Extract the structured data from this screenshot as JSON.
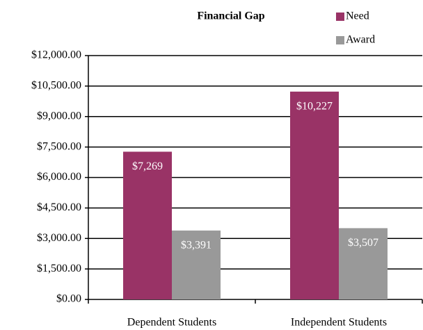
{
  "chart_data": {
    "type": "bar",
    "title": "Financial Gap",
    "categories": [
      "Dependent Students",
      "Independent Students"
    ],
    "series": [
      {
        "name": "Need",
        "color": "#993366",
        "values": [
          7269,
          10227
        ],
        "value_labels": [
          "$7,269",
          "$10,227"
        ]
      },
      {
        "name": "Award",
        "color": "#999999",
        "values": [
          3391,
          3507
        ],
        "value_labels": [
          "$3,391",
          "$3,507"
        ]
      }
    ],
    "ylim": [
      0,
      12000
    ],
    "yticks": [
      {
        "value": 0,
        "label": "$0.00"
      },
      {
        "value": 1500,
        "label": "$1,500.00"
      },
      {
        "value": 3000,
        "label": "$3,000.00"
      },
      {
        "value": 4500,
        "label": "$4,500.00"
      },
      {
        "value": 6000,
        "label": "$6,000.00"
      },
      {
        "value": 7500,
        "label": "$7,500.00"
      },
      {
        "value": 9000,
        "label": "$9,000.00"
      },
      {
        "value": 10500,
        "label": "$10,500.00"
      },
      {
        "value": 12000,
        "label": "$12,000.00"
      }
    ],
    "grid": true,
    "legend": "top-right"
  }
}
